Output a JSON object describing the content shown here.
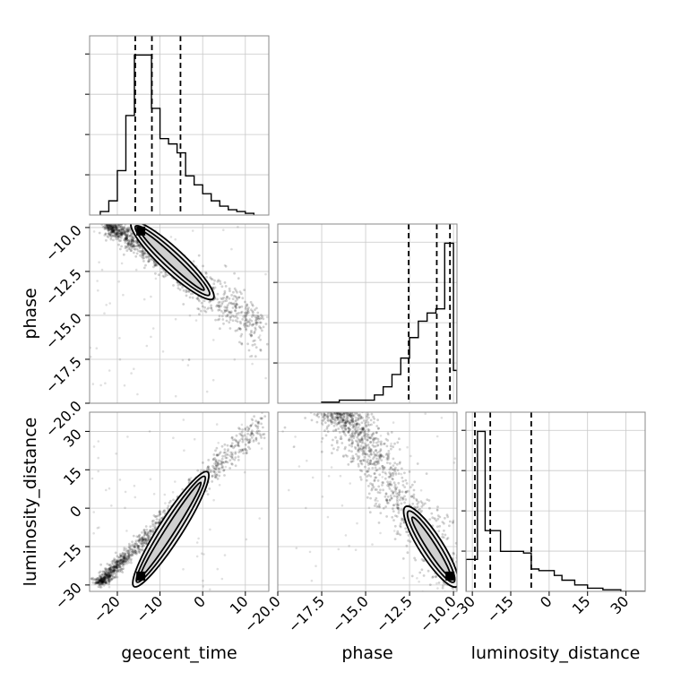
{
  "chart_data": {
    "type": "corner",
    "parameters": [
      "geocent_time",
      "phase",
      "luminosity_distance"
    ],
    "grid": true,
    "quantile_lines": {
      "geocent_time": [
        -15.8,
        -11.9,
        -5.2
      ],
      "phase": [
        -12.55,
        -10.95,
        -10.2
      ],
      "luminosity_distance": [
        -29.0,
        -23.0,
        -7.0
      ]
    },
    "axes": {
      "geocent_time": {
        "label": "geocent_time",
        "range": [
          -26.5,
          15.5
        ],
        "ticks": [
          -20,
          -10,
          0,
          10
        ],
        "tick_labels": [
          "−20",
          "−10",
          "0",
          "10"
        ]
      },
      "phase": {
        "label": "phase",
        "range": [
          -20.0,
          -9.8
        ],
        "ticks": [
          -20.0,
          -17.5,
          -15.0,
          -12.5,
          -10.0
        ],
        "tick_labels": [
          "−20.0",
          "−17.5",
          "−15.0",
          "−12.5",
          "−10.0"
        ]
      },
      "luminosity_distance": {
        "label": "luminosity_distance",
        "range": [
          -32.5,
          37.5
        ],
        "ticks": [
          -30,
          -15,
          0,
          15,
          30
        ],
        "tick_labels": [
          "−30",
          "−15",
          "0",
          "15",
          "30"
        ]
      }
    },
    "histograms": {
      "geocent_time": {
        "bin_edges": [
          -24.0,
          -22.0,
          -20.0,
          -18.0,
          -16.0,
          -14.0,
          -12.0,
          -10.0,
          -8.0,
          -6.0,
          -4.0,
          -2.0,
          0.0,
          2.0,
          4.0,
          6.0,
          8.0,
          10.0,
          12.0
        ],
        "counts": [
          2,
          8,
          25,
          56,
          90,
          90,
          60,
          43,
          40,
          35,
          22,
          17,
          12,
          8,
          5,
          3,
          2,
          1
        ]
      },
      "phase": {
        "bin_edges": [
          -17.5,
          -16.5,
          -14.5,
          -14.0,
          -13.5,
          -13.0,
          -12.5,
          -12.0,
          -11.5,
          -11.0,
          -10.5,
          -10.0,
          -9.8
        ],
        "counts": [
          0.5,
          1.5,
          4,
          8,
          14,
          22,
          32,
          40,
          44,
          46,
          78,
          16
        ]
      },
      "luminosity_distance": {
        "bin_edges": [
          -32.5,
          -31.0,
          -28.0,
          -25.0,
          -19.0,
          -16.0,
          -10.0,
          -7.0,
          -4.0,
          2.0,
          5.0,
          10.0,
          15.0,
          21.0,
          28.0,
          37.5
        ],
        "counts": [
          20,
          20,
          100,
          38,
          25,
          25,
          24,
          14,
          13,
          10,
          7,
          4,
          2,
          1,
          0
        ]
      }
    },
    "scatter_trends": {
      "phase_vs_geocent_time": {
        "start": [
          -22.0,
          -9.9
        ],
        "end": [
          14.0,
          -15.8
        ]
      },
      "luminosity_distance_vs_geocent_time": {
        "start": [
          -24.0,
          -29.0
        ],
        "end": [
          14.0,
          34.0
        ]
      },
      "luminosity_distance_vs_phase": {
        "start": [
          -16.5,
          38.0
        ],
        "end": [
          -9.8,
          -29.0
        ]
      }
    },
    "density_peaks": {
      "phase_vs_geocent_time": [
        -14.5,
        -10.2
      ],
      "luminosity_distance_vs_geocent_time": [
        -14.5,
        -26.5
      ],
      "luminosity_distance_vs_phase": [
        -10.2,
        -26.5
      ]
    }
  }
}
